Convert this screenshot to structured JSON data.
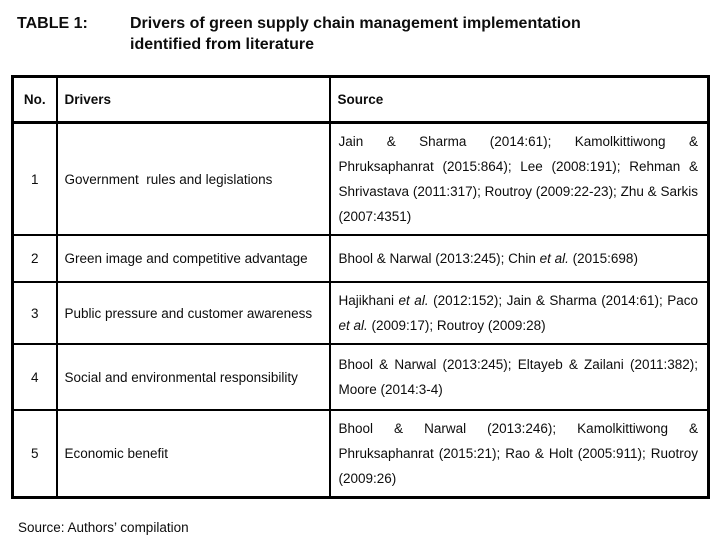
{
  "caption": {
    "label": "TABLE 1:",
    "text": "Drivers of green supply chain management implementation identified from literature"
  },
  "table": {
    "headers": [
      "No.",
      "Drivers",
      "Source"
    ],
    "rows": [
      {
        "no": "1",
        "driver": "Government  rules and legislations",
        "source": "Jain & Sharma (2014:61); Kamolkittiwong & Phruksaphanrat (2015:864); Lee (2008:191); Rehman & Shrivastava (2011:317); Routroy (2009:22-23); Zhu & Sarkis (2007:4351)"
      },
      {
        "no": "2",
        "driver": "Green image and competitive advantage",
        "source": "Bhool & Narwal (2013:245); Chin et al. (2015:698)"
      },
      {
        "no": "3",
        "driver": "Public pressure and customer awareness",
        "source": "Hajikhani et al. (2012:152); Jain & Sharma (2014:61); Paco et al. (2009:17); Routroy (2009:28)"
      },
      {
        "no": "4",
        "driver": "Social and environmental responsibility",
        "source": "Bhool & Narwal (2013:245); Eltayeb & Zailani (2011:382); Moore (2014:3-4)"
      },
      {
        "no": "5",
        "driver": "Economic benefit",
        "source": "Bhool & Narwal (2013:246); Kamolkittiwong & Phruksaphanrat (2015:21); Rao & Holt (2005:911); Ruotroy (2009:26)"
      }
    ]
  },
  "footer": {
    "source_note": "Source: Authors’ compilation"
  }
}
